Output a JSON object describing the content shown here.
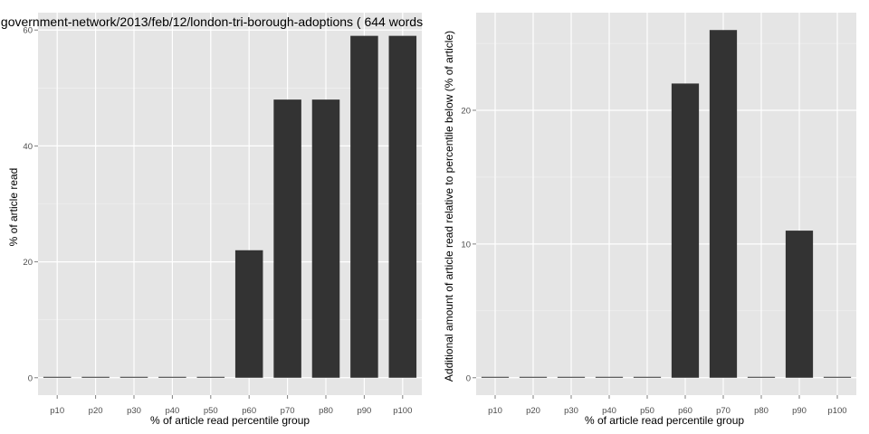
{
  "colors": {
    "panel_bg": "#e5e5e5",
    "grid_major": "#ffffff",
    "grid_minor": "#f2f2f2",
    "bar_fill": "#333333",
    "tick_text": "#4d4d4d",
    "text": "#000000"
  },
  "chart_data": [
    {
      "type": "bar",
      "title": "government-network/2013/feb/12/london-tri-borough-adoptions ( 644 words",
      "xlabel": "% of article read percentile group",
      "ylabel": "% of article read",
      "categories": [
        "p10",
        "p20",
        "p30",
        "p40",
        "p50",
        "p60",
        "p70",
        "p80",
        "p90",
        "p100"
      ],
      "values": [
        0,
        0,
        0,
        0,
        0,
        22,
        48,
        48,
        59,
        59
      ],
      "yticks": [
        "0",
        "20",
        "40",
        "60"
      ],
      "ylim": [
        -3,
        63
      ],
      "grid": true,
      "legend": "none"
    },
    {
      "type": "bar",
      "title": "",
      "xlabel": "% of article read percentile group",
      "ylabel": "Additional amount of article read relative to percentile below (% of article)",
      "categories": [
        "p10",
        "p20",
        "p30",
        "p40",
        "p50",
        "p60",
        "p70",
        "p80",
        "p90",
        "p100"
      ],
      "values": [
        0,
        0,
        0,
        0,
        0,
        22,
        26,
        0,
        11,
        0
      ],
      "yticks": [
        "0",
        "10",
        "20"
      ],
      "ylim": [
        -1.3,
        27.3
      ],
      "grid": true,
      "legend": "none"
    }
  ]
}
